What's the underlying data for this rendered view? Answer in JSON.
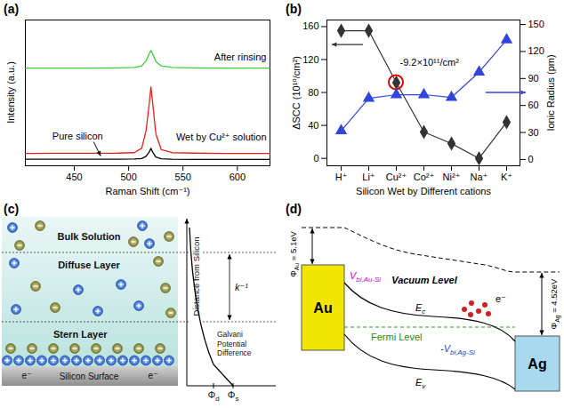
{
  "chart_data": [
    {
      "type": "line",
      "panel_label": "(a)",
      "x_label": "Raman Shift (cm⁻¹)",
      "y_label": "Intensity (a.u.)",
      "x": [
        405,
        430,
        460,
        490,
        505,
        512,
        516,
        519,
        520.5,
        522,
        525,
        530,
        540,
        560,
        590,
        630
      ],
      "xlim": [
        405,
        630
      ],
      "xticks": [
        450,
        500,
        550,
        600
      ],
      "ylim": [
        0,
        10
      ],
      "tick_labels": "x",
      "series": [
        {
          "name": "Pure silicon",
          "color": "#000000",
          "values": [
            0.45,
            0.45,
            0.45,
            0.45,
            0.46,
            0.5,
            0.65,
            0.95,
            1.2,
            0.95,
            0.6,
            0.48,
            0.45,
            0.44,
            0.44,
            0.44
          ]
        },
        {
          "name": "Wet by Cu²⁺ solution",
          "color": "#e8221b",
          "values": [
            0.85,
            0.86,
            0.86,
            0.87,
            0.9,
            1.2,
            2.4,
            4.3,
            5.4,
            4.4,
            2.2,
            1.1,
            0.9,
            0.87,
            0.85,
            0.85
          ]
        },
        {
          "name": "After rinsing",
          "color": "#3ccc3c",
          "values": [
            6.7,
            6.7,
            6.7,
            6.72,
            6.75,
            6.85,
            7.2,
            7.7,
            7.9,
            7.7,
            7.15,
            6.85,
            6.75,
            6.72,
            6.7,
            6.7
          ]
        }
      ]
    },
    {
      "type": "line",
      "panel_label": "(b)",
      "x_label": "Silicon Wet by Different cations",
      "y_label": "ΔSCC (10¹⁰/cm²)",
      "y2_label": "Ionic Radius (pm)",
      "categories": [
        "H⁺",
        "Li⁺",
        "Cu²⁺",
        "Co²⁺",
        "Ni²⁺",
        "Na⁺",
        "K⁺"
      ],
      "ylim": [
        -9,
        168
      ],
      "yticks": [
        0,
        40,
        80,
        120,
        160
      ],
      "y2lim": [
        -7,
        155
      ],
      "y2ticks": [
        0,
        30,
        60,
        90,
        120,
        150
      ],
      "series": [
        {
          "color": "#333333",
          "marker": "diamond",
          "line_style": "solid",
          "values": [
            155,
            155,
            92,
            32,
            18,
            0,
            44
          ]
        },
        {
          "color": "#3344dd",
          "marker": "triangle",
          "line_style": "solid",
          "axis": "y2",
          "values": [
            32,
            68,
            72,
            72,
            69,
            97,
            133
          ]
        }
      ],
      "annotations": [
        {
          "text": "-9.2×10¹¹/cm²",
          "category": "Cu²⁺"
        }
      ]
    }
  ],
  "diagrams": [
    {
      "panel_label": "(c)",
      "layers": [
        "Bulk Solution",
        "Diffuse Layer",
        "Stern Layer"
      ],
      "surface": "Silicon Surface",
      "surface_charge": "e⁻",
      "axis_label": "Distance from Silicon",
      "thickness_label": "k⁻¹",
      "potential_label": "Galvani Potential Difference",
      "potentials": [
        {
          "symbol": "Φ",
          "subscript": "d"
        },
        {
          "symbol": "Φ",
          "subscript": "s"
        }
      ]
    },
    {
      "panel_label": "(d)",
      "metals": [
        {
          "name": "Au",
          "work_function": {
            "symbol": "Φ",
            "subscript": "Au",
            "text": " = 5.1eV"
          }
        },
        {
          "name": "Ag",
          "work_function": {
            "symbol": "Φ",
            "subscript": "Ag",
            "text": " = 4.52eV"
          }
        }
      ],
      "vacuum_level": "Vacuum Level",
      "conduction_band": {
        "symbol": "E",
        "subscript": "c"
      },
      "valence_band": {
        "symbol": "E",
        "subscript": "v"
      },
      "fermi_level": "Fermi Level",
      "barrier_au_si": {
        "symbol": "V",
        "subscript": "bi,Au-Si"
      },
      "barrier_ag_si": {
        "symbol": "-V",
        "subscript": "bi,Ag-Si"
      },
      "carriers": "e⁻"
    }
  ]
}
